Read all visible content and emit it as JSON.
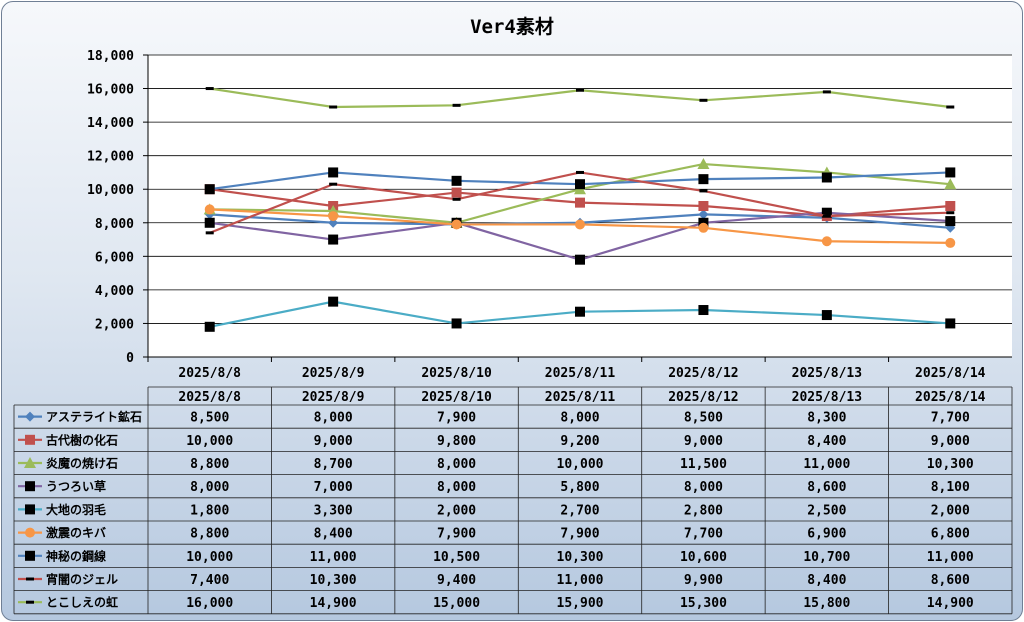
{
  "chart_data": {
    "type": "line",
    "title": "Ver4素材",
    "xlabel": "",
    "ylabel": "",
    "ylim": [
      0,
      18000
    ],
    "yticks": [
      0,
      2000,
      4000,
      6000,
      8000,
      10000,
      12000,
      14000,
      16000,
      18000
    ],
    "ytick_labels": [
      "0",
      "2,000",
      "4,000",
      "6,000",
      "8,000",
      "10,000",
      "12,000",
      "14,000",
      "16,000",
      "18,000"
    ],
    "grid": true,
    "legend": "data-table-below",
    "categories": [
      "2025/8/8",
      "2025/8/9",
      "2025/8/10",
      "2025/8/11",
      "2025/8/12",
      "2025/8/13",
      "2025/8/14"
    ],
    "series": [
      {
        "name": "アステライト鉱石",
        "color": "#4f81bd",
        "marker": "diamond",
        "values": [
          8500,
          8000,
          7900,
          8000,
          8500,
          8300,
          7700
        ],
        "labels": [
          "8,500",
          "8,000",
          "7,900",
          "8,000",
          "8,500",
          "8,300",
          "7,700"
        ]
      },
      {
        "name": "古代樹の化石",
        "color": "#c0504d",
        "marker": "square",
        "values": [
          10000,
          9000,
          9800,
          9200,
          9000,
          8400,
          9000
        ],
        "labels": [
          "10,000",
          "9,000",
          "9,800",
          "9,200",
          "9,000",
          "8,400",
          "9,000"
        ]
      },
      {
        "name": "炎魔の焼け石",
        "color": "#9bbb59",
        "marker": "triangle",
        "values": [
          8800,
          8700,
          8000,
          10000,
          11500,
          11000,
          10300
        ],
        "labels": [
          "8,800",
          "8,700",
          "8,000",
          "10,000",
          "11,500",
          "11,000",
          "10,300"
        ]
      },
      {
        "name": "うつろい草",
        "color": "#8064a2",
        "marker": "square-black",
        "values": [
          8000,
          7000,
          8000,
          5800,
          8000,
          8600,
          8100
        ],
        "labels": [
          "8,000",
          "7,000",
          "8,000",
          "5,800",
          "8,000",
          "8,600",
          "8,100"
        ]
      },
      {
        "name": "大地の羽毛",
        "color": "#4bacc6",
        "marker": "square-black",
        "values": [
          1800,
          3300,
          2000,
          2700,
          2800,
          2500,
          2000
        ],
        "labels": [
          "1,800",
          "3,300",
          "2,000",
          "2,700",
          "2,800",
          "2,500",
          "2,000"
        ]
      },
      {
        "name": "激震のキバ",
        "color": "#f79646",
        "marker": "circle",
        "values": [
          8800,
          8400,
          7900,
          7900,
          7700,
          6900,
          6800
        ],
        "labels": [
          "8,800",
          "8,400",
          "7,900",
          "7,900",
          "7,700",
          "6,900",
          "6,800"
        ]
      },
      {
        "name": "神秘の鋼線",
        "color": "#4f81bd",
        "marker": "square-black",
        "values": [
          10000,
          11000,
          10500,
          10300,
          10600,
          10700,
          11000
        ],
        "labels": [
          "10,000",
          "11,000",
          "10,500",
          "10,300",
          "10,600",
          "10,700",
          "11,000"
        ]
      },
      {
        "name": "宵闇のジェル",
        "color": "#c0504d",
        "marker": "dash",
        "values": [
          7400,
          10300,
          9400,
          11000,
          9900,
          8400,
          8600
        ],
        "labels": [
          "7,400",
          "10,300",
          "9,400",
          "11,000",
          "9,900",
          "8,400",
          "8,600"
        ]
      },
      {
        "name": "とこしえの虹",
        "color": "#9bbb59",
        "marker": "dash",
        "values": [
          16000,
          14900,
          15000,
          15900,
          15300,
          15800,
          14900
        ],
        "labels": [
          "16,000",
          "14,900",
          "15,000",
          "15,900",
          "15,300",
          "15,800",
          "14,900"
        ]
      }
    ]
  }
}
